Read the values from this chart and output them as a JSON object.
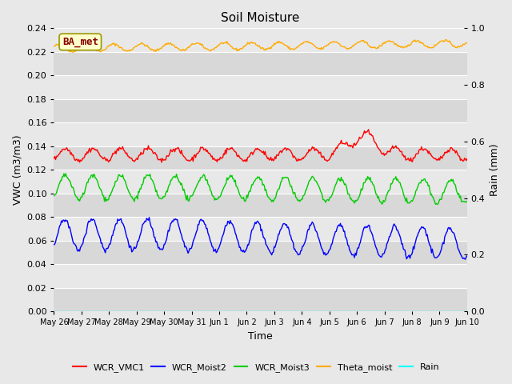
{
  "title": "Soil Moisture",
  "ylabel_left": "VWC (m3/m3)",
  "ylabel_right": "Rain (mm)",
  "xlabel": "Time",
  "ylim_left": [
    0.0,
    0.24
  ],
  "ylim_right": [
    0.0,
    1.0
  ],
  "bg_color": "#e8e8e8",
  "plot_bg_light": "#e8e8e8",
  "plot_bg_dark": "#d8d8d8",
  "annotation_text": "BA_met",
  "annotation_facecolor": "#ffffcc",
  "annotation_edgecolor": "#999900",
  "annotation_textcolor": "#880000",
  "n_points": 500,
  "colors": {
    "WCR_VMC1": "#ff0000",
    "WCR_Moist2": "#0000ff",
    "WCR_Moist3": "#00cc00",
    "Theta_moist": "#ffaa00",
    "Rain": "#00ffff"
  },
  "xtick_labels": [
    "May 26",
    "May 27",
    "May 28",
    "May 29",
    "May 30",
    "May 31",
    "Jun 1",
    "Jun 2",
    "Jun 3",
    "Jun 4",
    "Jun 5",
    "Jun 6",
    "Jun 7",
    "Jun 8",
    "Jun 9",
    "Jun 10"
  ],
  "ytick_left": [
    0.0,
    0.02,
    0.04,
    0.06,
    0.08,
    0.1,
    0.12,
    0.14,
    0.16,
    0.18,
    0.2,
    0.22,
    0.24
  ],
  "ytick_right": [
    0.0,
    0.2,
    0.4,
    0.6,
    0.8,
    1.0
  ]
}
